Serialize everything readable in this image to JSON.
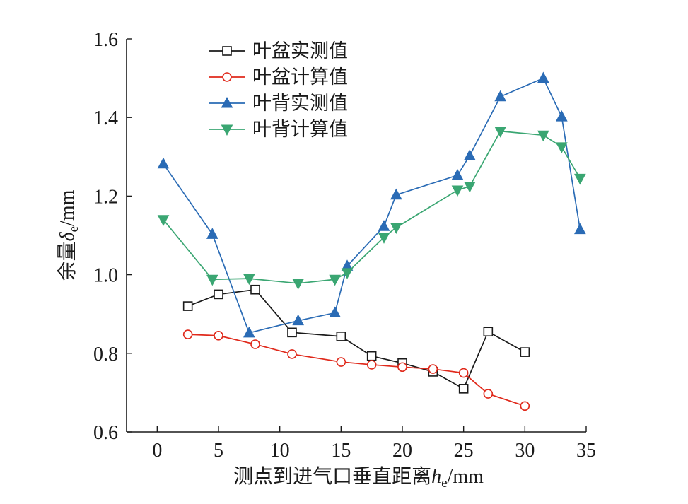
{
  "chart_data": {
    "type": "line",
    "xlabel": {
      "prefix": "测点到进气口垂直距离",
      "var": "h",
      "sub": "e",
      "unit": "/mm"
    },
    "ylabel": {
      "prefix": "余量",
      "var": "δ",
      "sub": "e",
      "unit": "/mm"
    },
    "xlim": [
      -2.5,
      35
    ],
    "ylim": [
      0.6,
      1.6
    ],
    "xticks": [
      0,
      5,
      10,
      15,
      20,
      25,
      30,
      35
    ],
    "xtick_labels": [
      "0",
      "5",
      "10",
      "15",
      "20",
      "25",
      "30",
      "35"
    ],
    "yticks": [
      0.6,
      0.8,
      1.0,
      1.2,
      1.4,
      1.6
    ],
    "ytick_labels": [
      "0.6",
      "0.8",
      "1.0",
      "1.2",
      "1.4",
      "1.6"
    ],
    "legend_position": "top-left",
    "grid": false,
    "series": [
      {
        "name": "叶盆实测值",
        "color": "#1a1a1a",
        "marker": "square-open",
        "x": [
          2.5,
          5,
          8,
          11,
          15,
          17.5,
          20,
          22.5,
          25,
          27,
          30
        ],
        "y": [
          0.92,
          0.95,
          0.962,
          0.853,
          0.843,
          0.793,
          0.775,
          0.753,
          0.71,
          0.855,
          0.803
        ]
      },
      {
        "name": "叶盆计算值",
        "color": "#e0291b",
        "marker": "circle-open",
        "x": [
          2.5,
          5,
          8,
          11,
          15,
          17.5,
          20,
          22.5,
          25,
          27,
          30
        ],
        "y": [
          0.848,
          0.845,
          0.823,
          0.798,
          0.778,
          0.771,
          0.765,
          0.76,
          0.75,
          0.697,
          0.666
        ]
      },
      {
        "name": "叶背实测值",
        "color": "#2a6bb5",
        "marker": "triangle-up",
        "x": [
          0.5,
          4.5,
          7.5,
          11.5,
          14.5,
          15.5,
          18.5,
          19.5,
          24.5,
          25.5,
          28,
          31.5,
          33,
          34.5
        ],
        "y": [
          1.282,
          1.103,
          0.852,
          0.883,
          0.903,
          1.022,
          1.123,
          1.203,
          1.253,
          1.303,
          1.453,
          1.5,
          1.402,
          1.115
        ]
      },
      {
        "name": "叶背计算值",
        "color": "#3aa672",
        "marker": "triangle-down",
        "x": [
          0.5,
          4.5,
          7.5,
          11.5,
          14.5,
          15.5,
          18.5,
          19.5,
          24.5,
          25.5,
          28,
          31.5,
          33,
          34.5
        ],
        "y": [
          1.14,
          0.988,
          0.99,
          0.978,
          0.988,
          1.005,
          1.095,
          1.12,
          1.215,
          1.225,
          1.365,
          1.355,
          1.325,
          1.245
        ]
      }
    ]
  }
}
